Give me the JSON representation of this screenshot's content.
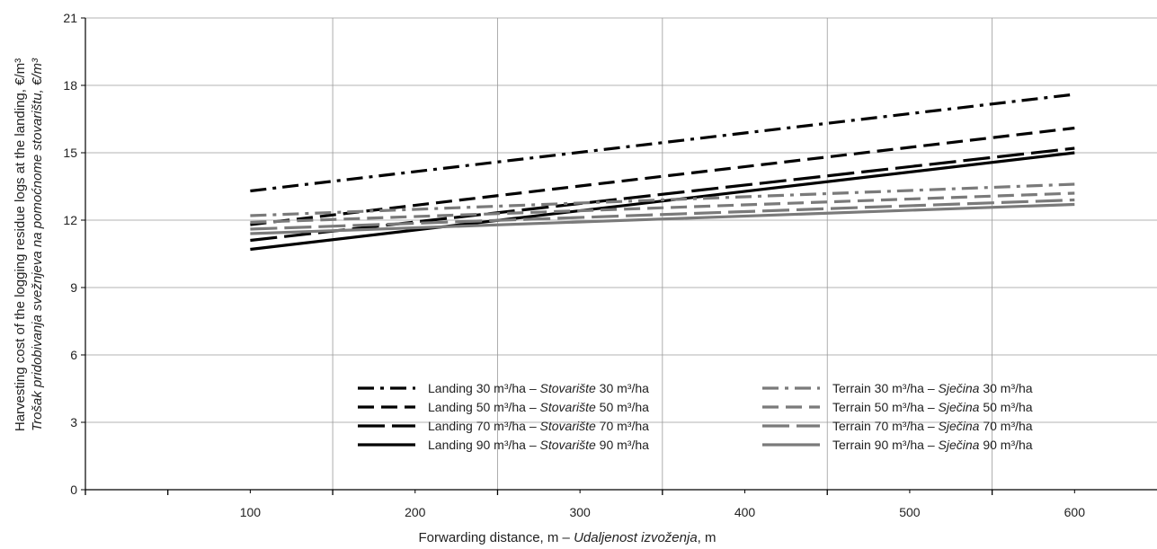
{
  "chart_data": {
    "type": "line",
    "xlabel": {
      "main": "Forwarding distance, m",
      "sep": " – ",
      "translation": "Udaljenost izvoženja",
      "unit": ", m"
    },
    "ylabel": {
      "line1": "Harvesting cost of the logging residue logs at the landing, €/m³",
      "line2": "Trošak pridobivanja svežnjeva na pomoćnome stovarištu, €/m³"
    },
    "xlim": [
      0,
      650
    ],
    "ylim": [
      0,
      21
    ],
    "x_ticks": [
      "100",
      "200",
      "300",
      "400",
      "500",
      "600"
    ],
    "y_ticks": [
      "0",
      "3",
      "6",
      "9",
      "12",
      "15",
      "18",
      "21"
    ],
    "grid": true,
    "legend_placement": "bottom-center",
    "series": [
      {
        "name": "Landing 30 m³/ha – Stovarište 30 m³/ha",
        "label_en": "Landing 30 m³/ha",
        "label_sep": "  –  ",
        "label_hr": "Stovarište",
        "label_hr_unit": " 30 m³/ha",
        "color": "#000000",
        "dash": "dashdot",
        "x": [
          100,
          600
        ],
        "values": [
          13.3,
          17.6
        ]
      },
      {
        "name": "Landing 50 m³/ha – Stovarište 50 m³/ha",
        "label_en": "Landing 50 m³/ha",
        "label_sep": "  –  ",
        "label_hr": "Stovarište",
        "label_hr_unit": " 50 m³/ha",
        "color": "#000000",
        "dash": "dash",
        "x": [
          100,
          600
        ],
        "values": [
          11.8,
          16.1
        ]
      },
      {
        "name": "Landing 70 m³/ha – Stovarište 70 m³/ha",
        "label_en": "Landing 70 m³/ha",
        "label_sep": "  –  ",
        "label_hr": "Stovarište",
        "label_hr_unit": " 70 m³/ha",
        "color": "#000000",
        "dash": "longdash",
        "x": [
          100,
          600
        ],
        "values": [
          11.1,
          15.2
        ]
      },
      {
        "name": "Landing 90 m³/ha – Stovarište 90 m³/ha",
        "label_en": "Landing 90 m³/ha",
        "label_sep": "  –  ",
        "label_hr": "Stovarište",
        "label_hr_unit": " 90 m³/ha",
        "color": "#000000",
        "dash": "solid",
        "x": [
          100,
          600
        ],
        "values": [
          10.7,
          15.0
        ]
      },
      {
        "name": "Terrain 30 m³/ha – Sječina 30 m³/ha",
        "label_en": "Terrain 30 m³/ha",
        "label_sep": "  –  ",
        "label_hr": "Sječina",
        "label_hr_unit": " 30 m³/ha",
        "color": "#7a7a7a",
        "dash": "dashdot",
        "x": [
          100,
          600
        ],
        "values": [
          12.2,
          13.6
        ]
      },
      {
        "name": "Terrain 50 m³/ha – Sječina 50 m³/ha",
        "label_en": "Terrain 50 m³/ha",
        "label_sep": "  –  ",
        "label_hr": "Sječina",
        "label_hr_unit": " 50 m³/ha",
        "color": "#7a7a7a",
        "dash": "dash",
        "x": [
          100,
          600
        ],
        "values": [
          11.9,
          13.2
        ]
      },
      {
        "name": "Terrain 70 m³/ha – Sječina 70 m³/ha",
        "label_en": "Terrain 70 m³/ha",
        "label_sep": "  –  ",
        "label_hr": "Sječina",
        "label_hr_unit": " 70 m³/ha",
        "color": "#7a7a7a",
        "dash": "longdash",
        "x": [
          100,
          600
        ],
        "values": [
          11.6,
          12.9
        ]
      },
      {
        "name": "Terrain 90 m³/ha – Sječina 90 m³/ha",
        "label_en": "Terrain 90 m³/ha",
        "label_sep": "  –  ",
        "label_hr": "Sječina",
        "label_hr_unit": " 90 m³/ha",
        "color": "#7a7a7a",
        "dash": "solid",
        "x": [
          100,
          600
        ],
        "values": [
          11.4,
          12.7
        ]
      }
    ]
  }
}
